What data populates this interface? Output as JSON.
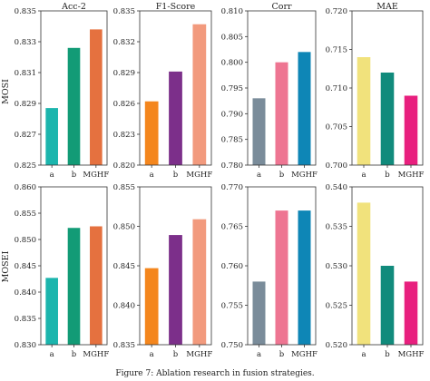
{
  "caption": "Figure 7: Ablation research in fusion strategies.",
  "chart_data": [
    {
      "type": "bar",
      "row_label": "MOSI",
      "title": "Acc-2",
      "categories": [
        "a",
        "b",
        "MGHF"
      ],
      "values": [
        0.8287,
        0.8326,
        0.8338
      ],
      "ylim": [
        0.825,
        0.835
      ],
      "yticks": [
        "0.825",
        "0.827",
        "0.829",
        "0.831",
        "0.833",
        "0.835"
      ],
      "colors": [
        "#1bb5ad",
        "#129b76",
        "#e5713f"
      ]
    },
    {
      "type": "bar",
      "row_label": "MOSI",
      "title": "F1-Score",
      "categories": [
        "a",
        "b",
        "MGHF"
      ],
      "values": [
        0.8262,
        0.8291,
        0.8337
      ],
      "ylim": [
        0.82,
        0.835
      ],
      "yticks": [
        "0.820",
        "0.823",
        "0.826",
        "0.829",
        "0.832",
        "0.835"
      ],
      "colors": [
        "#f4861d",
        "#7c2f8a",
        "#f29a7d"
      ]
    },
    {
      "type": "bar",
      "row_label": "MOSI",
      "title": "Corr",
      "categories": [
        "a",
        "b",
        "MGHF"
      ],
      "values": [
        0.793,
        0.8,
        0.802
      ],
      "ylim": [
        0.78,
        0.81
      ],
      "yticks": [
        "0.780",
        "0.785",
        "0.790",
        "0.795",
        "0.800",
        "0.805",
        "0.810"
      ],
      "colors": [
        "#7a8c9a",
        "#ee7592",
        "#0e86b6"
      ]
    },
    {
      "type": "bar",
      "row_label": "MOSI",
      "title": "MAE",
      "categories": [
        "a",
        "b",
        "MGHF"
      ],
      "values": [
        0.714,
        0.712,
        0.709
      ],
      "ylim": [
        0.7,
        0.72
      ],
      "yticks": [
        "0.700",
        "0.705",
        "0.710",
        "0.715",
        "0.720"
      ],
      "colors": [
        "#f1e27c",
        "#118b7c",
        "#e81f7e"
      ]
    },
    {
      "type": "bar",
      "row_label": "MOSEI",
      "title": "",
      "categories": [
        "a",
        "b",
        "MGHF"
      ],
      "values": [
        0.8427,
        0.8522,
        0.8525
      ],
      "ylim": [
        0.83,
        0.86
      ],
      "yticks": [
        "0.830",
        "0.835",
        "0.840",
        "0.845",
        "0.850",
        "0.855",
        "0.860"
      ],
      "colors": [
        "#1bb5ad",
        "#129b76",
        "#e5713f"
      ]
    },
    {
      "type": "bar",
      "row_label": "MOSEI",
      "title": "",
      "categories": [
        "a",
        "b",
        "MGHF"
      ],
      "values": [
        0.8447,
        0.8489,
        0.8509
      ],
      "ylim": [
        0.835,
        0.855
      ],
      "yticks": [
        "0.835",
        "0.840",
        "0.845",
        "0.850",
        "0.855"
      ],
      "colors": [
        "#f4861d",
        "#7c2f8a",
        "#f29a7d"
      ]
    },
    {
      "type": "bar",
      "row_label": "MOSEI",
      "title": "",
      "categories": [
        "a",
        "b",
        "MGHF"
      ],
      "values": [
        0.758,
        0.767,
        0.767
      ],
      "ylim": [
        0.75,
        0.77
      ],
      "yticks": [
        "0.750",
        "0.755",
        "0.760",
        "0.765",
        "0.770"
      ],
      "colors": [
        "#7a8c9a",
        "#ee7592",
        "#0e86b6"
      ]
    },
    {
      "type": "bar",
      "row_label": "MOSEI",
      "title": "",
      "categories": [
        "a",
        "b",
        "MGHF"
      ],
      "values": [
        0.538,
        0.53,
        0.528
      ],
      "ylim": [
        0.52,
        0.54
      ],
      "yticks": [
        "0.520",
        "0.525",
        "0.530",
        "0.535",
        "0.540"
      ],
      "colors": [
        "#f1e27c",
        "#118b7c",
        "#e81f7e"
      ]
    }
  ]
}
